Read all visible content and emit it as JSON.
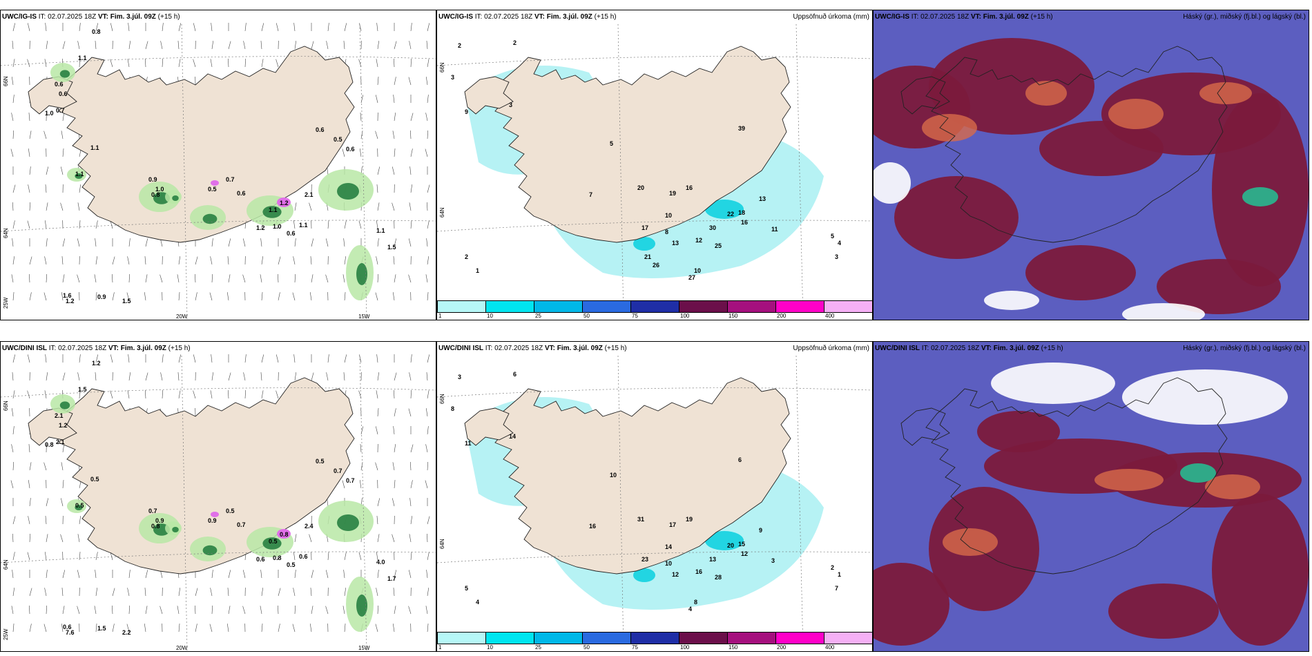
{
  "colors": {
    "land": "#efe2d4",
    "sea": "#ffffff",
    "green_light": "#b9e8a6",
    "green_dark": "#1f7a3b",
    "magenta": "#e070e8",
    "cyan_light": "#b6f2f4",
    "cyan": "#22d5e2",
    "cloud_high": "#7b1a3c",
    "cloud_mid": "#5c5ec0",
    "cloud_low": "#d86a4a"
  },
  "rows": [
    {
      "model": "UWC/IG-IS",
      "panels": [
        {
          "header_model": "UWC/IG-IS",
          "header_it": "IT: 02.07.2025 18Z",
          "header_vt_label": "VT:",
          "header_vt": "Fim. 3.júl. 09Z",
          "header_lead": "(+15 h)",
          "title_right": "",
          "lat_labels": [
            "66N",
            "64N",
            "25W"
          ],
          "lon_labels": [
            "20W",
            "15W"
          ],
          "values": [
            "0.8",
            "1.1",
            "0.6",
            "0.6",
            "0.7",
            "1.0",
            "0.9",
            "1.1",
            "1.0",
            "0.8",
            "1.1",
            "0.6",
            "0.7",
            "0.5",
            "0.6",
            "0.5",
            "0.6",
            "1.2",
            "1.1",
            "1.2",
            "1.0",
            "0.6",
            "1.1",
            "2.1",
            "1.5",
            "1.1",
            "1.6",
            "1.2",
            "0.9",
            "1.5"
          ]
        },
        {
          "header_model": "UWC/IG-IS",
          "header_it": "IT: 02.07.2025 18Z",
          "header_vt_label": "VT:",
          "header_vt": "Fim. 3.júl. 09Z",
          "header_lead": "(+15 h)",
          "title_right": "Uppsöfnuð úrkoma (mm)",
          "lat_labels": [
            "66N",
            "64N"
          ],
          "values": [
            "2",
            "2",
            "3",
            "9",
            "3",
            "5",
            "7",
            "20",
            "17",
            "19",
            "16",
            "10",
            "13",
            "30",
            "25",
            "22",
            "18",
            "16",
            "13",
            "27",
            "11",
            "5",
            "4",
            "3",
            "2",
            "1",
            "39",
            "10",
            "8",
            "12",
            "21",
            "26"
          ],
          "colorbar_ticks": [
            "1",
            "10",
            "25",
            "50",
            "75",
            "100",
            "150",
            "200",
            "400"
          ],
          "colorbar_colors": [
            "#b6f7f7",
            "#00e5f0",
            "#00b8e8",
            "#2a6ae0",
            "#1f2ea6",
            "#6b0f4a",
            "#a5107e",
            "#ff00c8",
            "#f5b0f5"
          ]
        },
        {
          "header_model": "UWC/IG-IS",
          "header_it": "IT: 02.07.2025 18Z",
          "header_vt_label": "VT:",
          "header_vt": "Fim. 3.júl. 09Z",
          "header_lead": "(+15 h)",
          "title_right": "Háský (gr.), miðský (fj.bl.) og lágský (bl.)"
        }
      ]
    },
    {
      "model": "UWC/DINI ISL",
      "panels": [
        {
          "header_model": "UWC/DINI ISL",
          "header_it": "IT: 02.07.2025 18Z",
          "header_vt_label": "VT:",
          "header_vt": "Fim. 3.júl. 09Z",
          "header_lead": "(+15 h)",
          "title_right": "",
          "lat_labels": [
            "66N",
            "64N",
            "25W"
          ],
          "lon_labels": [
            "20W",
            "15W"
          ],
          "values": [
            "1.2",
            "1.5",
            "2.1",
            "1.2",
            "2.1",
            "0.8",
            "0.7",
            "0.5",
            "0.9",
            "0.8",
            "0.5",
            "0.5",
            "0.5",
            "0.9",
            "0.7",
            "0.7",
            "0.7",
            "0.8",
            "0.5",
            "0.6",
            "0.8",
            "0.5",
            "0.6",
            "2.4",
            "1.7",
            "4.0",
            "0.6",
            "7.6",
            "1.5",
            "2.2"
          ]
        },
        {
          "header_model": "UWC/DINI ISL",
          "header_it": "IT: 02.07.2025 18Z",
          "header_vt_label": "VT:",
          "header_vt": "Fim. 3.júl. 09Z",
          "header_lead": "(+15 h)",
          "title_right": "Uppsöfnuð úrkoma (mm)",
          "lat_labels": [
            "66N",
            "64N"
          ],
          "values": [
            "3",
            "6",
            "8",
            "11",
            "14",
            "10",
            "16",
            "31",
            "23",
            "17",
            "19",
            "14",
            "12",
            "13",
            "28",
            "20",
            "15",
            "12",
            "9",
            "4",
            "3",
            "2",
            "1",
            "7",
            "5",
            "4",
            "6",
            "8",
            "10",
            "16"
          ],
          "colorbar_ticks": [
            "1",
            "10",
            "25",
            "50",
            "75",
            "100",
            "150",
            "200",
            "400"
          ],
          "colorbar_colors": [
            "#b6f7f7",
            "#00e5f0",
            "#00b8e8",
            "#2a6ae0",
            "#1f2ea6",
            "#6b0f4a",
            "#a5107e",
            "#ff00c8",
            "#f5b0f5"
          ]
        },
        {
          "header_model": "UWC/DINI ISL",
          "header_it": "IT: 02.07.2025 18Z",
          "header_vt_label": "VT:",
          "header_vt": "Fim. 3.júl. 09Z",
          "header_lead": "(+15 h)",
          "title_right": "Háský (gr.), miðský (fj.bl.) og lágský (bl.)"
        }
      ]
    }
  ]
}
